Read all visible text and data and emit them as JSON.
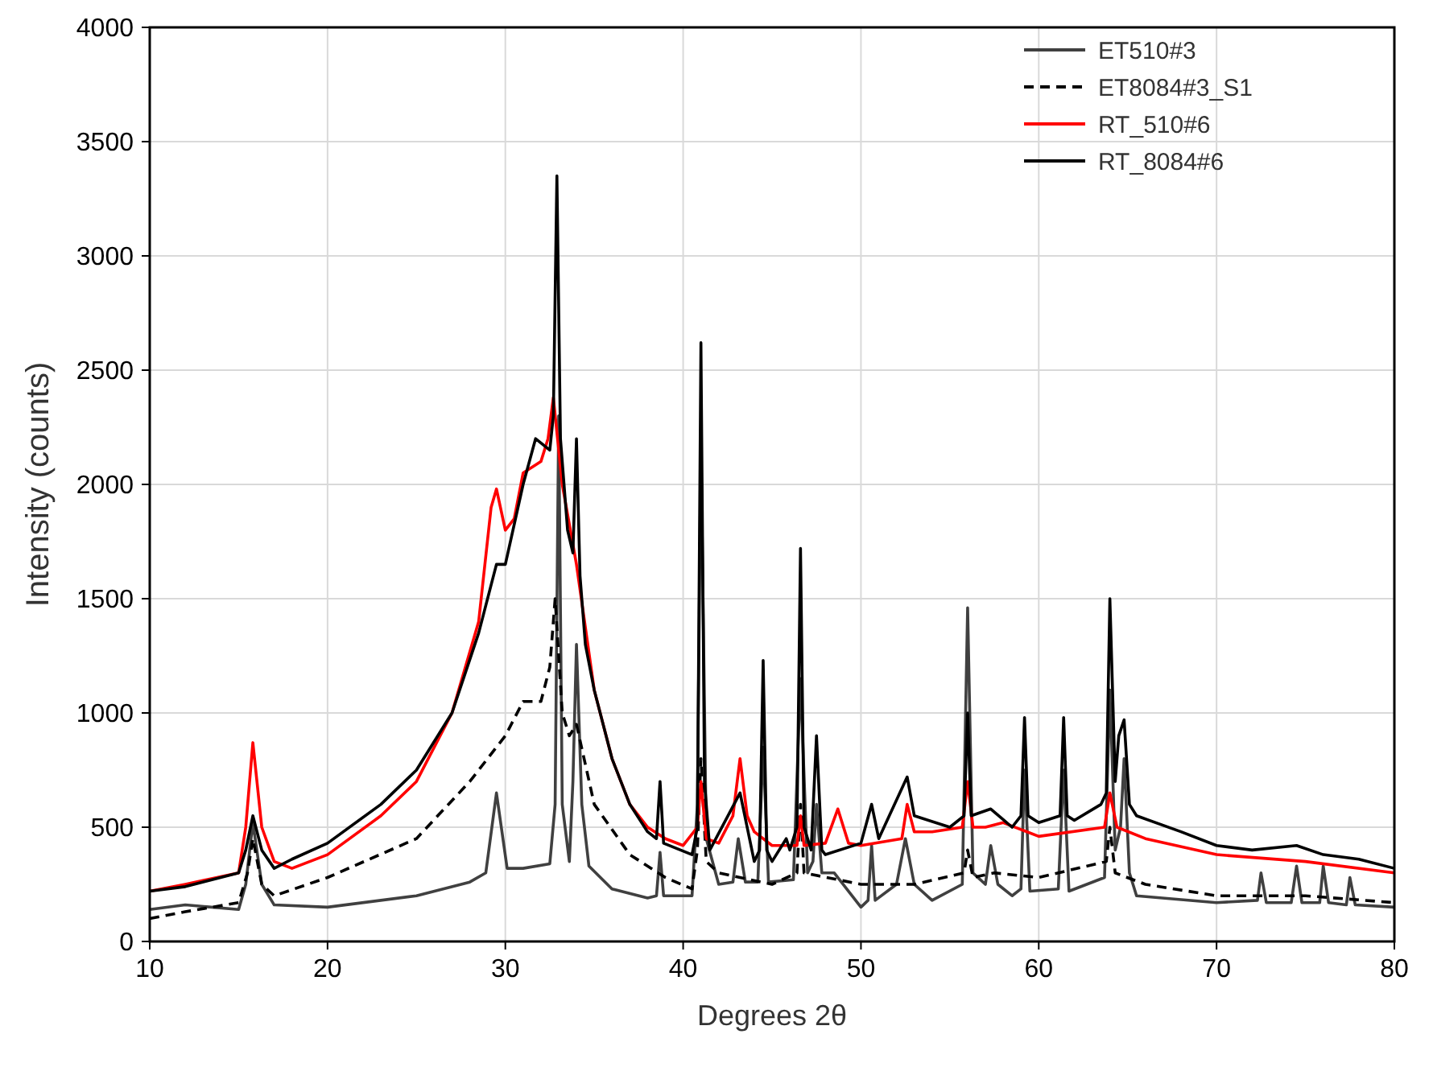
{
  "chart_data": {
    "type": "line",
    "xlabel": "Degrees 2θ",
    "ylabel": "Intensity (counts)",
    "xlim": [
      10,
      80
    ],
    "xticks": [
      10,
      20,
      30,
      40,
      50,
      60,
      70,
      80
    ],
    "ylim": [
      0,
      4000
    ],
    "yticks": [
      0,
      500,
      1000,
      1500,
      2000,
      2500,
      3000,
      3500,
      4000
    ],
    "grid": true,
    "legend": "top right",
    "series": [
      {
        "name": "ET510#3",
        "color": "#404040",
        "line_style": "solid",
        "x": [
          10,
          12,
          15,
          15.4,
          15.8,
          16.3,
          17,
          20,
          25,
          28,
          28.9,
          29.5,
          30.1,
          31,
          32.5,
          32.8,
          33,
          33.2,
          33.6,
          33.8,
          34,
          34.3,
          34.7,
          36,
          38,
          38.5,
          38.7,
          38.9,
          40.5,
          40.8,
          41,
          41.3,
          42,
          42.8,
          43.1,
          43.5,
          44.2,
          44.5,
          44.8,
          46.2,
          46.6,
          47,
          47.3,
          47.5,
          47.8,
          48.5,
          50,
          50.4,
          50.6,
          50.8,
          52,
          52.5,
          53,
          54,
          55.7,
          56,
          56.3,
          57,
          57.3,
          57.7,
          58.5,
          59,
          59.2,
          59.5,
          61.1,
          61.4,
          61.7,
          63.7,
          64,
          64.3,
          64.6,
          64.8,
          65.1,
          65.5,
          70,
          72.3,
          72.5,
          72.8,
          74.2,
          74.5,
          74.8,
          75.8,
          76,
          76.3,
          77.3,
          77.5,
          77.8,
          80
        ],
        "values": [
          140,
          160,
          140,
          250,
          520,
          250,
          160,
          150,
          200,
          260,
          300,
          650,
          320,
          320,
          340,
          600,
          2300,
          600,
          350,
          700,
          1300,
          600,
          330,
          230,
          190,
          200,
          390,
          200,
          200,
          600,
          2180,
          450,
          250,
          260,
          450,
          260,
          260,
          850,
          260,
          270,
          1150,
          300,
          350,
          600,
          300,
          300,
          150,
          180,
          420,
          180,
          250,
          450,
          250,
          180,
          250,
          1460,
          300,
          250,
          420,
          250,
          200,
          230,
          750,
          220,
          230,
          750,
          220,
          280,
          1100,
          400,
          500,
          800,
          300,
          200,
          170,
          180,
          300,
          170,
          170,
          330,
          170,
          170,
          330,
          170,
          160,
          280,
          160,
          150
        ]
      },
      {
        "name": "ET8084#3_S1",
        "color": "#000000",
        "line_style": "dashed",
        "x": [
          10,
          12,
          15,
          15.5,
          15.8,
          16.3,
          17,
          20,
          25,
          28,
          30,
          31,
          32,
          32.5,
          32.8,
          33.2,
          33.6,
          34,
          35,
          37,
          39,
          40.5,
          40.8,
          41,
          41.3,
          42,
          45,
          46.4,
          46.6,
          46.8,
          50,
          53,
          55.8,
          56,
          56.3,
          57.5,
          60,
          63.8,
          64,
          64.3,
          66,
          70,
          75,
          80
        ],
        "values": [
          100,
          130,
          170,
          300,
          450,
          250,
          200,
          280,
          450,
          700,
          900,
          1050,
          1050,
          1200,
          1500,
          1000,
          900,
          950,
          600,
          380,
          280,
          230,
          400,
          800,
          350,
          300,
          250,
          300,
          600,
          300,
          250,
          250,
          300,
          400,
          280,
          300,
          280,
          350,
          500,
          300,
          250,
          200,
          200,
          170
        ]
      },
      {
        "name": "RT_510#6",
        "color": "#ff0000",
        "line_style": "solid",
        "x": [
          10,
          12,
          15,
          15.4,
          15.8,
          16.3,
          17,
          18,
          20,
          23,
          25,
          27,
          28.5,
          29.2,
          29.5,
          30,
          30.5,
          31,
          32,
          32.4,
          32.7,
          33.2,
          34,
          35,
          36,
          37,
          38,
          39,
          40,
          40.8,
          41,
          41.3,
          42,
          42.8,
          43.2,
          43.6,
          44,
          45,
          46.4,
          46.6,
          46.8,
          48,
          48.7,
          49.3,
          50,
          52.3,
          52.6,
          53,
          54,
          55.7,
          56,
          56.3,
          57,
          58,
          60,
          63.7,
          64,
          64.4,
          66,
          70,
          75,
          80
        ],
        "values": [
          220,
          250,
          300,
          500,
          870,
          500,
          350,
          320,
          380,
          550,
          700,
          1000,
          1400,
          1900,
          1980,
          1800,
          1850,
          2050,
          2100,
          2200,
          2380,
          2000,
          1650,
          1100,
          800,
          600,
          500,
          450,
          420,
          500,
          700,
          450,
          430,
          550,
          800,
          550,
          480,
          420,
          420,
          550,
          420,
          430,
          580,
          430,
          420,
          450,
          600,
          480,
          480,
          500,
          700,
          500,
          500,
          520,
          460,
          500,
          650,
          500,
          450,
          380,
          350,
          300
        ]
      },
      {
        "name": "RT_8084#6",
        "color": "#000000",
        "line_style": "solid",
        "x": [
          10,
          12,
          15,
          15.4,
          15.8,
          16.3,
          17,
          18,
          20,
          23,
          25,
          27,
          28.5,
          29.5,
          30,
          31,
          31.7,
          32.5,
          32.7,
          32.9,
          33.1,
          33.5,
          33.8,
          34,
          34.2,
          34.5,
          35,
          36,
          37,
          38,
          38.5,
          38.7,
          38.9,
          40.5,
          40.8,
          41,
          41.2,
          41.5,
          43.2,
          44,
          44.3,
          44.5,
          44.7,
          45,
          45.8,
          46,
          46.4,
          46.6,
          46.8,
          47.2,
          47.5,
          47.8,
          48,
          50,
          50.6,
          51,
          52.6,
          53,
          55,
          55.8,
          56,
          56.2,
          57.3,
          58.5,
          59,
          59.2,
          59.4,
          60,
          61.2,
          61.4,
          61.6,
          62,
          63.5,
          63.8,
          64,
          64.3,
          64.5,
          64.8,
          65.1,
          65.5,
          68,
          70,
          72,
          74.5,
          76,
          78,
          80
        ],
        "values": [
          220,
          240,
          300,
          400,
          550,
          400,
          320,
          360,
          430,
          600,
          750,
          1000,
          1350,
          1650,
          1650,
          2000,
          2200,
          2150,
          2300,
          3350,
          2200,
          1800,
          1700,
          2200,
          1600,
          1300,
          1100,
          800,
          600,
          480,
          450,
          700,
          430,
          380,
          500,
          2620,
          700,
          400,
          650,
          350,
          400,
          1230,
          400,
          350,
          450,
          400,
          500,
          1720,
          500,
          400,
          900,
          400,
          380,
          430,
          600,
          450,
          720,
          550,
          500,
          550,
          1000,
          550,
          580,
          500,
          550,
          980,
          550,
          520,
          550,
          980,
          550,
          530,
          600,
          650,
          1500,
          700,
          900,
          970,
          600,
          550,
          480,
          420,
          400,
          420,
          380,
          360,
          320
        ]
      }
    ]
  }
}
